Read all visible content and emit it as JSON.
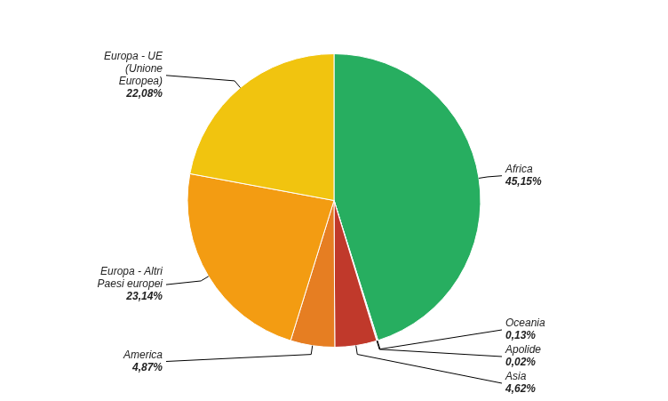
{
  "chart_data": {
    "type": "pie",
    "categories": [
      "Africa",
      "Oceania",
      "Apolide",
      "Asia",
      "America",
      "Europa - Altri\nPaesi europei",
      "Europa - UE\n(Unione\nEuropea)"
    ],
    "values": [
      45.15,
      0.13,
      0.02,
      4.62,
      4.87,
      23.14,
      22.08
    ],
    "value_labels": [
      "45,15%",
      "0,13%",
      "0,02%",
      "4,62%",
      "4,87%",
      "23,14%",
      "22,08%"
    ],
    "colors": [
      "#27AE60",
      "#B8CCE4",
      "#B8CCE4",
      "#C0392B",
      "#E67E22",
      "#F39C12",
      "#F1C40F"
    ],
    "data_labels": true
  }
}
